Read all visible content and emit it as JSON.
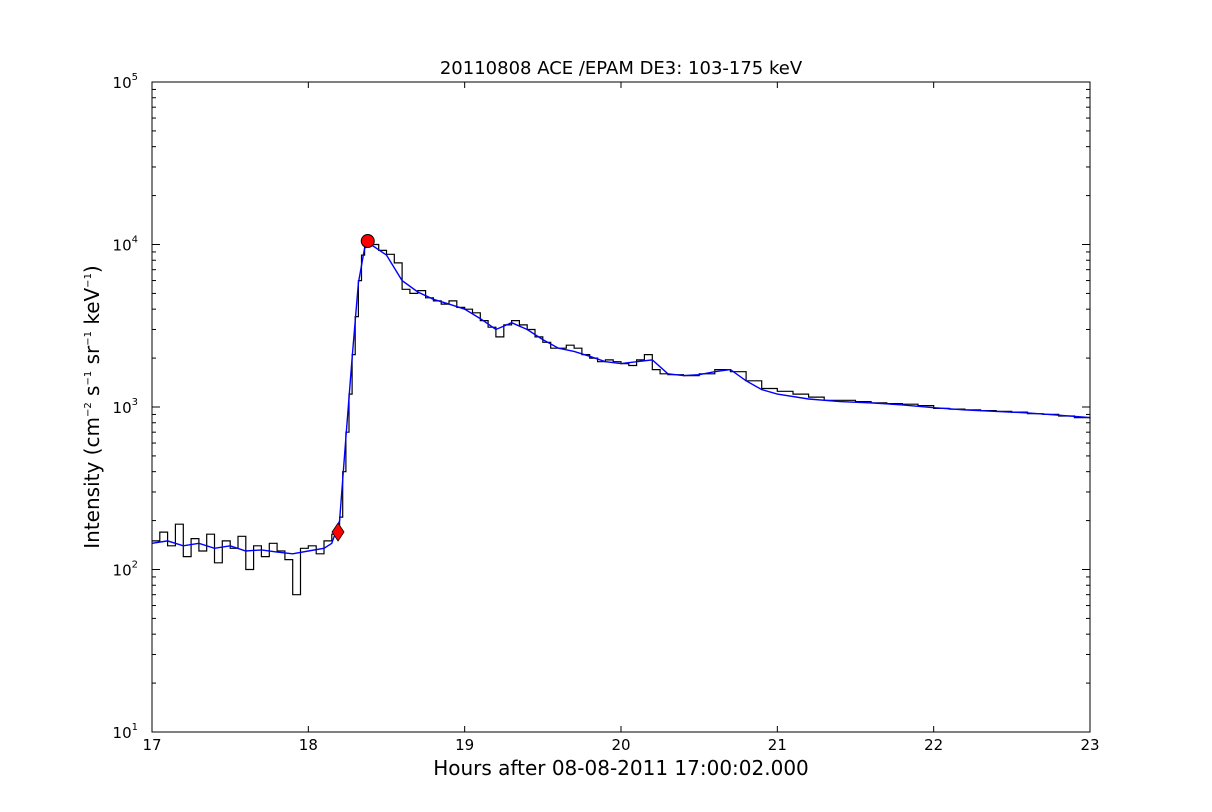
{
  "chart_data": {
    "type": "line",
    "title": "20110808 ACE /EPAM DE3: 103-175 keV",
    "xlabel": "Hours after 08-08-2011 17:00:02.000",
    "ylabel": {
      "main": "Intensity (cm",
      "p1": "−2",
      "mid1": " s",
      "p2": "−1",
      "mid2": " sr",
      "p3": "−1",
      "mid3": " keV",
      "p4": "−1",
      "end": ")"
    },
    "xlim": [
      17,
      23
    ],
    "ylim": [
      10,
      100000
    ],
    "yscale": "log",
    "x_ticks": [
      "17",
      "18",
      "19",
      "20",
      "21",
      "22",
      "23"
    ],
    "y_ticks": [
      {
        "value": 10,
        "base": "10",
        "exp": "1"
      },
      {
        "value": 100,
        "base": "10",
        "exp": "2"
      },
      {
        "value": 1000,
        "base": "10",
        "exp": "3"
      },
      {
        "value": 10000,
        "base": "10",
        "exp": "4"
      },
      {
        "value": 100000,
        "base": "10",
        "exp": "5"
      }
    ],
    "grid": false,
    "legend": "none",
    "colors": {
      "raw": "#000000",
      "smoothed": "#0000ff",
      "marker": "#ff0000"
    },
    "series": [
      {
        "style": "steps",
        "color": "#000000",
        "x": [
          17.0,
          17.05,
          17.1,
          17.15,
          17.2,
          17.25,
          17.3,
          17.35,
          17.4,
          17.45,
          17.5,
          17.55,
          17.6,
          17.65,
          17.7,
          17.75,
          17.8,
          17.85,
          17.9,
          17.95,
          18.0,
          18.05,
          18.1,
          18.15,
          18.18,
          18.2,
          18.22,
          18.24,
          18.26,
          18.28,
          18.3,
          18.32,
          18.34,
          18.36,
          18.38,
          18.4,
          18.45,
          18.5,
          18.55,
          18.6,
          18.65,
          18.7,
          18.75,
          18.8,
          18.85,
          18.9,
          18.95,
          19.0,
          19.05,
          19.1,
          19.15,
          19.2,
          19.25,
          19.3,
          19.35,
          19.4,
          19.45,
          19.5,
          19.55,
          19.6,
          19.65,
          19.7,
          19.75,
          19.8,
          19.85,
          19.9,
          19.95,
          20.0,
          20.05,
          20.1,
          20.15,
          20.2,
          20.25,
          20.3,
          20.4,
          20.5,
          20.6,
          20.7,
          20.8,
          20.9,
          21.0,
          21.1,
          21.2,
          21.3,
          21.4,
          21.5,
          21.6,
          21.7,
          21.8,
          21.9,
          22.0,
          22.1,
          22.2,
          22.3,
          22.4,
          22.5,
          22.6,
          22.7,
          22.8,
          22.9,
          23.0
        ],
        "y": [
          150,
          170,
          140,
          190,
          120,
          155,
          130,
          165,
          110,
          150,
          135,
          160,
          100,
          140,
          120,
          145,
          130,
          115,
          70,
          135,
          140,
          125,
          150,
          165,
          175,
          210,
          400,
          700,
          1200,
          2100,
          3600,
          6000,
          8600,
          9800,
          10400,
          10000,
          9200,
          8700,
          7700,
          5300,
          5000,
          5200,
          4700,
          4500,
          4300,
          4500,
          4100,
          4000,
          3800,
          3400,
          3100,
          2700,
          3200,
          3400,
          3200,
          3000,
          2700,
          2500,
          2300,
          2300,
          2400,
          2300,
          2100,
          2000,
          1900,
          1950,
          1900,
          1850,
          1800,
          1950,
          2100,
          1700,
          1600,
          1580,
          1560,
          1600,
          1700,
          1650,
          1450,
          1300,
          1250,
          1200,
          1150,
          1100,
          1100,
          1080,
          1060,
          1050,
          1040,
          1020,
          980,
          970,
          960,
          950,
          940,
          930,
          910,
          900,
          880,
          860,
          850
        ]
      },
      {
        "style": "line",
        "color": "#0000ff",
        "x": [
          17.0,
          17.1,
          17.2,
          17.3,
          17.4,
          17.5,
          17.6,
          17.7,
          17.8,
          17.9,
          18.0,
          18.1,
          18.15,
          18.2,
          18.24,
          18.28,
          18.32,
          18.36,
          18.4,
          18.5,
          18.6,
          18.7,
          18.8,
          18.9,
          19.0,
          19.1,
          19.2,
          19.3,
          19.4,
          19.5,
          19.6,
          19.7,
          19.8,
          19.9,
          20.0,
          20.1,
          20.2,
          20.3,
          20.4,
          20.5,
          20.6,
          20.7,
          20.8,
          20.9,
          21.0,
          21.2,
          21.4,
          21.6,
          21.8,
          22.0,
          22.2,
          22.4,
          22.6,
          22.8,
          23.0
        ],
        "y": [
          145,
          150,
          140,
          145,
          135,
          140,
          130,
          132,
          128,
          125,
          130,
          135,
          145,
          200,
          650,
          2000,
          5800,
          9500,
          10000,
          8600,
          6000,
          5100,
          4600,
          4300,
          4000,
          3500,
          3000,
          3300,
          3000,
          2600,
          2300,
          2200,
          2050,
          1900,
          1850,
          1900,
          1950,
          1600,
          1560,
          1580,
          1650,
          1700,
          1450,
          1280,
          1200,
          1120,
          1080,
          1060,
          1030,
          990,
          960,
          940,
          920,
          890,
          860
        ]
      }
    ],
    "markers": [
      {
        "shape": "diamond",
        "x": 18.19,
        "y": 170,
        "color": "#ff0000"
      },
      {
        "shape": "circle",
        "x": 18.38,
        "y": 10500,
        "color": "#ff0000"
      }
    ]
  }
}
